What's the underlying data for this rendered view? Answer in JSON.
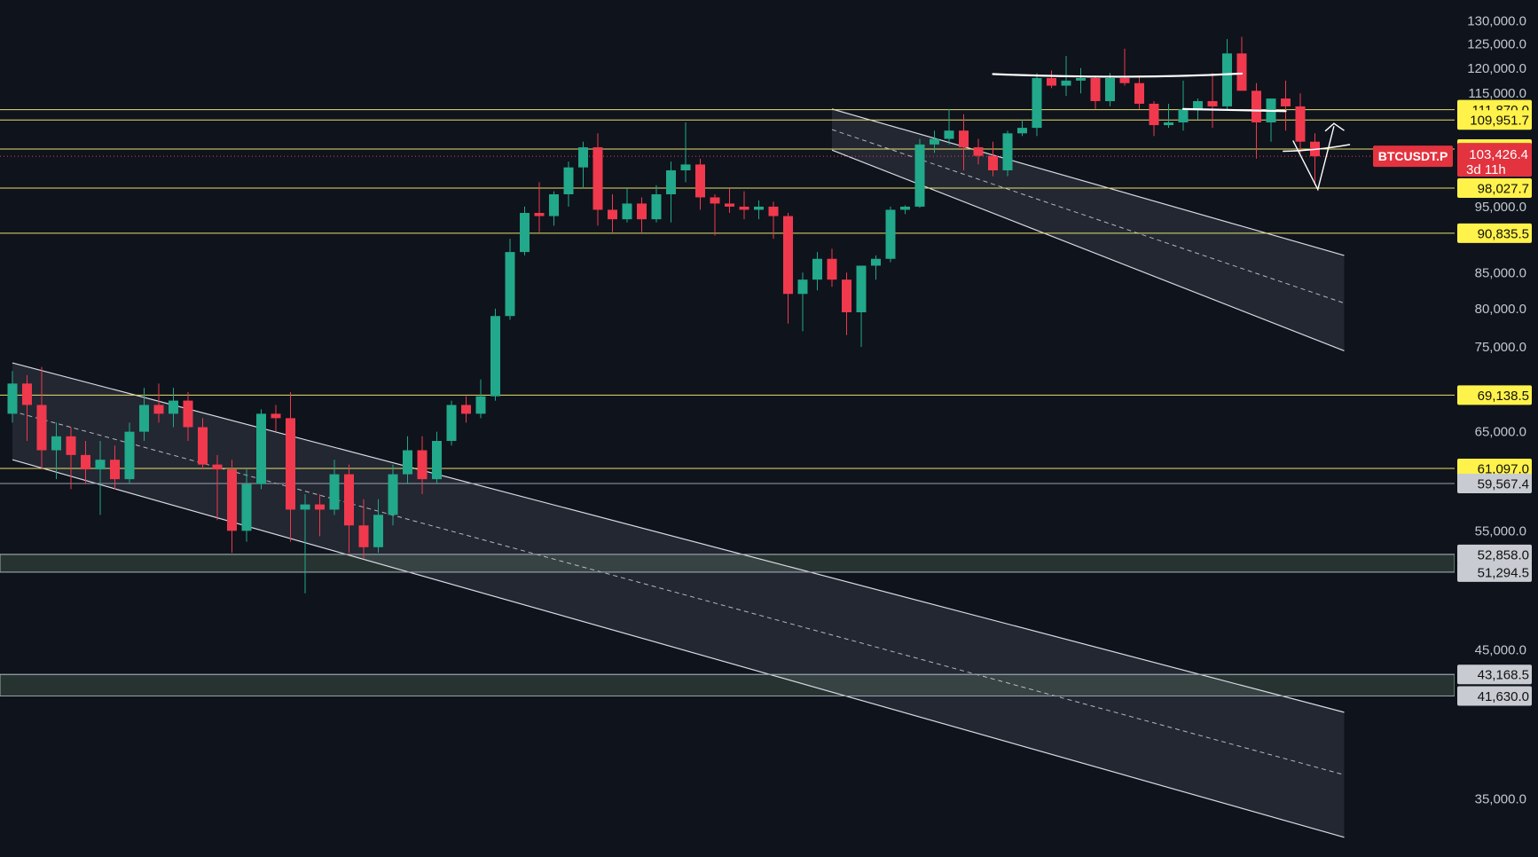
{
  "chart_data": {
    "type": "candlestick",
    "symbol": "BTCUSDT.P",
    "countdown": "3d 11h",
    "last_price": 103426.4,
    "last_price_label": "103,426.4",
    "y_scale": "log",
    "ylim": [
      32500,
      133000
    ],
    "axis_ticks": [
      {
        "value": 130000,
        "label": "130,000.0"
      },
      {
        "value": 125000,
        "label": "125,000.0"
      },
      {
        "value": 120000,
        "label": "120,000.0"
      },
      {
        "value": 115000,
        "label": "115,000.0"
      },
      {
        "value": 95000,
        "label": "95,000.0"
      },
      {
        "value": 85000,
        "label": "85,000.0"
      },
      {
        "value": 80000,
        "label": "80,000.0"
      },
      {
        "value": 75000,
        "label": "75,000.0"
      },
      {
        "value": 65000,
        "label": "65,000.0"
      },
      {
        "value": 55000,
        "label": "55,000.0"
      },
      {
        "value": 45000,
        "label": "45,000.0"
      },
      {
        "value": 35000,
        "label": "35,000.0"
      }
    ],
    "levels": [
      {
        "value": 111870.0,
        "label": "111,870.0",
        "style": "yellow"
      },
      {
        "value": 109951.7,
        "label": "109,951.7",
        "style": "yellow"
      },
      {
        "value": 104698.8,
        "label": "104,698.8",
        "style": "yellow"
      },
      {
        "value": 98027.7,
        "label": "98,027.7",
        "style": "yellow"
      },
      {
        "value": 90835.5,
        "label": "90,835.5",
        "style": "yellow"
      },
      {
        "value": 69138.5,
        "label": "69,138.5",
        "style": "yellow"
      },
      {
        "value": 61097.0,
        "label": "61,097.0",
        "style": "yellow"
      },
      {
        "value": 59567.4,
        "label": "59,567.4",
        "style": "gray"
      },
      {
        "value": 52858.0,
        "label": "52,858.0",
        "style": "gray"
      },
      {
        "value": 51294.5,
        "label": "51,294.5",
        "style": "gray"
      },
      {
        "value": 43168.5,
        "label": "43,168.5",
        "style": "gray"
      },
      {
        "value": 41630.0,
        "label": "41,630.0",
        "style": "gray"
      }
    ],
    "zones": [
      {
        "from": 51294.5,
        "to": 52858.0
      },
      {
        "from": 41630.0,
        "to": 43168.5
      }
    ],
    "candles": [
      [
        67000,
        72000,
        66000,
        70500
      ],
      [
        70500,
        71500,
        64000,
        68000
      ],
      [
        68000,
        72500,
        61000,
        63000
      ],
      [
        63000,
        66000,
        60000,
        64500
      ],
      [
        64500,
        65500,
        59000,
        62500
      ],
      [
        62500,
        64000,
        59500,
        61000
      ],
      [
        61000,
        64000,
        56500,
        62000
      ],
      [
        62000,
        63500,
        59000,
        60000
      ],
      [
        60000,
        66000,
        59500,
        65000
      ],
      [
        65000,
        70000,
        64000,
        68000
      ],
      [
        68000,
        70500,
        66000,
        67000
      ],
      [
        67000,
        70000,
        65500,
        68500
      ],
      [
        68500,
        69500,
        64000,
        65500
      ],
      [
        65500,
        66500,
        61000,
        61500
      ],
      [
        61500,
        62500,
        56000,
        61000
      ],
      [
        61000,
        62000,
        53000,
        55000
      ],
      [
        55000,
        61000,
        54000,
        59500
      ],
      [
        59500,
        67500,
        59000,
        67000
      ],
      [
        67000,
        68000,
        65000,
        66500
      ],
      [
        66500,
        69500,
        54000,
        57000
      ],
      [
        57000,
        58500,
        49500,
        57500
      ],
      [
        57500,
        58500,
        54500,
        57000
      ],
      [
        57000,
        62000,
        56500,
        60500
      ],
      [
        60500,
        61500,
        53000,
        55500
      ],
      [
        55500,
        58000,
        52500,
        53500
      ],
      [
        53500,
        58000,
        53000,
        56500
      ],
      [
        56500,
        61500,
        55500,
        60500
      ],
      [
        60500,
        64500,
        59500,
        63000
      ],
      [
        63000,
        64500,
        58500,
        60000
      ],
      [
        60000,
        65000,
        59500,
        64000
      ],
      [
        64000,
        68500,
        63500,
        68000
      ],
      [
        68000,
        69000,
        66000,
        67000
      ],
      [
        67000,
        71000,
        66500,
        69000
      ],
      [
        69000,
        80000,
        68500,
        79000
      ],
      [
        79000,
        90000,
        78500,
        88000
      ],
      [
        88000,
        95000,
        87500,
        94000
      ],
      [
        94000,
        99000,
        91000,
        93500
      ],
      [
        93500,
        97500,
        92000,
        97000
      ],
      [
        97000,
        102500,
        95000,
        101500
      ],
      [
        101500,
        106000,
        98000,
        105000
      ],
      [
        105000,
        107500,
        92000,
        94500
      ],
      [
        94500,
        97000,
        91000,
        93000
      ],
      [
        93000,
        98000,
        92500,
        95500
      ],
      [
        95500,
        96500,
        91000,
        93000
      ],
      [
        93000,
        98500,
        92500,
        97000
      ],
      [
        97000,
        102500,
        92500,
        101000
      ],
      [
        101000,
        109500,
        99000,
        102000
      ],
      [
        102000,
        103000,
        94500,
        96500
      ],
      [
        96500,
        97000,
        90500,
        95500
      ],
      [
        95500,
        98000,
        94000,
        95000
      ],
      [
        95000,
        97500,
        93000,
        94500
      ],
      [
        94500,
        96000,
        93000,
        95000
      ],
      [
        95000,
        95800,
        90000,
        93500
      ],
      [
        93500,
        94000,
        78000,
        82000
      ],
      [
        82000,
        85000,
        77000,
        84000
      ],
      [
        84000,
        88000,
        82500,
        87000
      ],
      [
        87000,
        88500,
        83000,
        84000
      ],
      [
        84000,
        85000,
        76500,
        79500
      ],
      [
        79500,
        86000,
        75000,
        86000
      ],
      [
        86000,
        87500,
        84000,
        87000
      ],
      [
        87000,
        95000,
        86500,
        94500
      ],
      [
        94500,
        95200,
        93800,
        95000
      ],
      [
        95000,
        106500,
        94800,
        105500
      ],
      [
        105500,
        108000,
        104000,
        106500
      ],
      [
        106500,
        112000,
        105500,
        108000
      ],
      [
        108000,
        111000,
        101000,
        105000
      ],
      [
        105000,
        106500,
        102000,
        103500
      ],
      [
        103500,
        106000,
        100000,
        101000
      ],
      [
        101000,
        108000,
        100000,
        107500
      ],
      [
        107500,
        110000,
        107000,
        108500
      ],
      [
        108500,
        119000,
        107000,
        118000
      ],
      [
        118000,
        119500,
        116000,
        116500
      ],
      [
        116500,
        122500,
        114500,
        117500
      ],
      [
        117500,
        120000,
        115000,
        118000
      ],
      [
        118000,
        118500,
        112000,
        113500
      ],
      [
        113500,
        119000,
        112500,
        118000
      ],
      [
        118000,
        124000,
        116500,
        117000
      ],
      [
        117000,
        118500,
        112000,
        113000
      ],
      [
        113000,
        113500,
        107000,
        109000
      ],
      [
        109000,
        113000,
        108500,
        109500
      ],
      [
        109500,
        117500,
        108000,
        112000
      ],
      [
        112000,
        114000,
        110000,
        113500
      ],
      [
        113500,
        119000,
        108500,
        112500
      ],
      [
        112500,
        126000,
        112000,
        123000
      ],
      [
        123000,
        126500,
        115500,
        115500
      ],
      [
        115500,
        117000,
        103000,
        109500
      ],
      [
        109500,
        114000,
        106000,
        114000
      ],
      [
        114000,
        117500,
        108000,
        112500
      ],
      [
        112500,
        115000,
        104000,
        106000
      ],
      [
        106000,
        107500,
        98500,
        103426
      ]
    ],
    "channels": [
      {
        "upper": [
          [
            0,
            73000
          ],
          [
            91,
            40500
          ]
        ],
        "lower": [
          [
            0,
            62000
          ],
          [
            91,
            32800
          ]
        ]
      },
      {
        "upper": [
          [
            56,
            112000
          ],
          [
            91,
            87500
          ]
        ],
        "lower": [
          [
            56,
            104500
          ],
          [
            91,
            74500
          ]
        ]
      }
    ]
  }
}
